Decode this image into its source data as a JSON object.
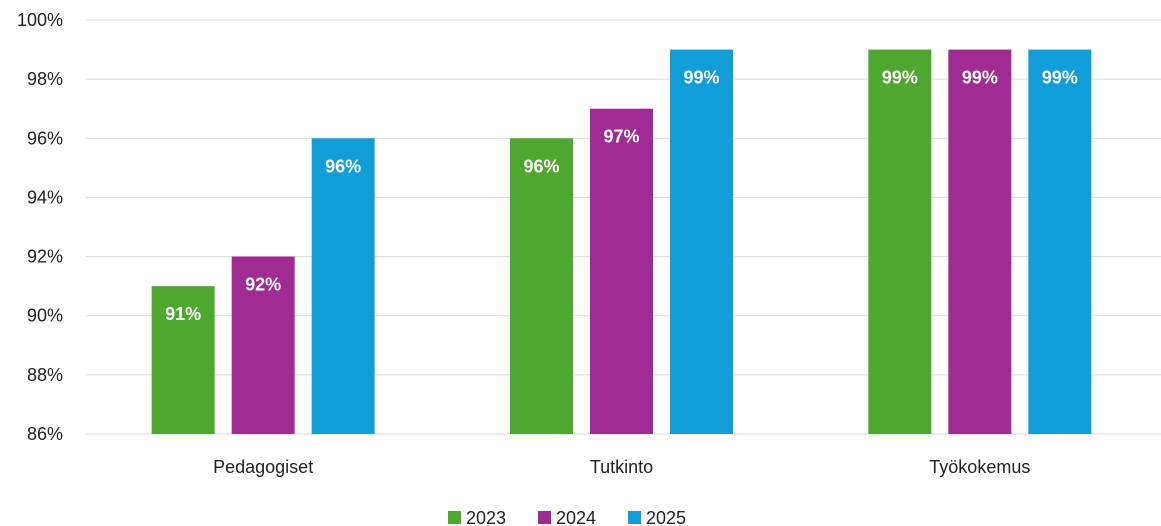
{
  "chart_data": {
    "type": "bar",
    "categories": [
      "Pedagogiset",
      "Tutkinto",
      "Työkokemus"
    ],
    "series": [
      {
        "name": "2023",
        "values": [
          91,
          96,
          99
        ],
        "labels": [
          "91%",
          "96%",
          "99%"
        ],
        "color": "#4ea72e"
      },
      {
        "name": "2024",
        "values": [
          92,
          97,
          99
        ],
        "labels": [
          "92%",
          "97%",
          "99%"
        ],
        "color": "#a02b93"
      },
      {
        "name": "2025",
        "values": [
          96,
          99,
          99
        ],
        "labels": [
          "96%",
          "99%",
          "99%"
        ],
        "color": "#119ed8"
      }
    ],
    "ylim": [
      86,
      100
    ],
    "yticks": [
      86,
      88,
      90,
      92,
      94,
      96,
      98,
      100
    ],
    "ytick_labels": [
      "86%",
      "88%",
      "90%",
      "92%",
      "94%",
      "96%",
      "98%",
      "100%"
    ],
    "grid": true,
    "gridline_color": "#d9d9d9",
    "legend_position": "bottom-center",
    "title": "",
    "xlabel": "",
    "ylabel": ""
  }
}
